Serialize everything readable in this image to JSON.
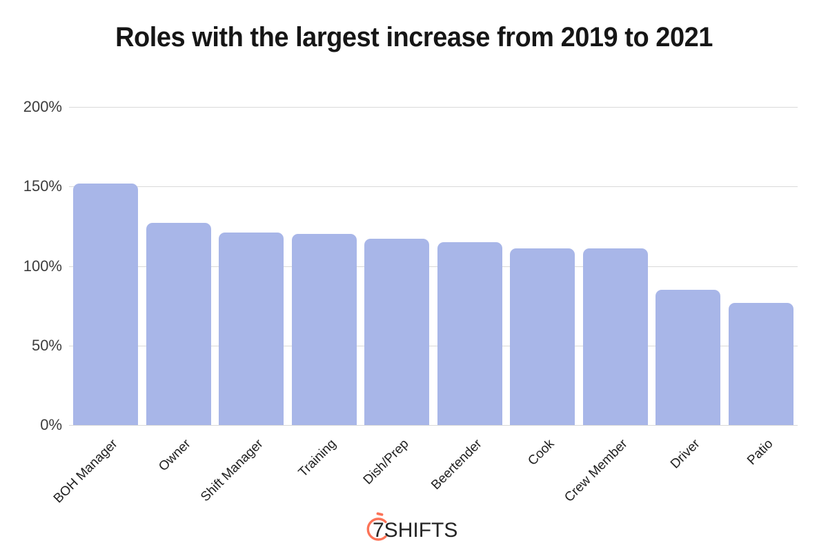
{
  "page": {
    "background": "#ffffff"
  },
  "title": "Roles with the largest increase from 2019 to 2021",
  "chart_data": {
    "type": "bar",
    "title": "Roles with the largest increase from 2019 to 2021",
    "categories": [
      "BOH Manager",
      "Owner",
      "Shift Manager",
      "Training",
      "Dish/Prep",
      "Beertender",
      "Cook",
      "Crew Member",
      "Driver",
      "Patio"
    ],
    "values": [
      152,
      127,
      121,
      120,
      117,
      115,
      111,
      111,
      85,
      77
    ],
    "value_unit": "%",
    "xlabel": "",
    "ylabel": "",
    "ylim": [
      0,
      200
    ],
    "yticks": [
      {
        "value": 0,
        "label": "0%"
      },
      {
        "value": 50,
        "label": "50%"
      },
      {
        "value": 100,
        "label": "100%"
      },
      {
        "value": 150,
        "label": "150%"
      },
      {
        "value": 200,
        "label": "200%"
      }
    ],
    "grid": true,
    "legend": false,
    "bar_color": "#A8B6E8",
    "gridline_color": "#D9D9D9",
    "y_label_color": "#3C3C3C",
    "x_label_color": "#1F1F1F"
  },
  "footer": {
    "logo_text": "7SHIFTS",
    "logo_icon": "stopwatch-icon",
    "logo_color": "#FC7357",
    "logo_text_color": "#252525"
  }
}
